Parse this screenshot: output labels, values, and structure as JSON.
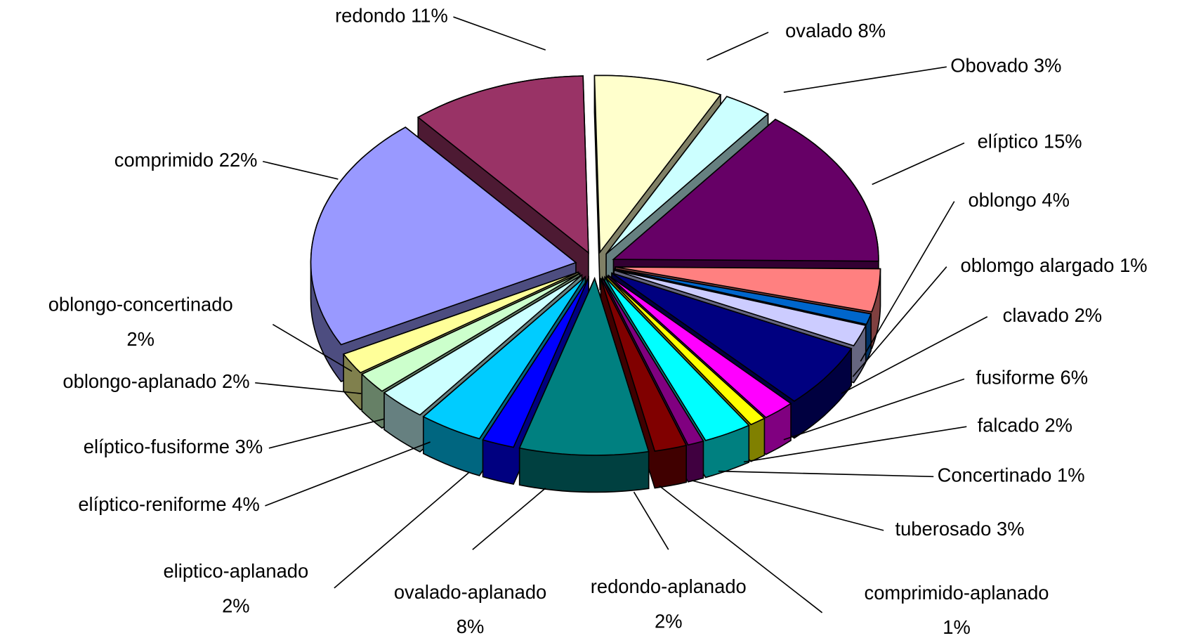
{
  "chart_data": {
    "type": "pie",
    "categories": [
      "redondo",
      "ovalado",
      "Obovado",
      "elíptico",
      "oblongo",
      "oblomgo alargado",
      "clavado",
      "fusiforme",
      "falcado",
      "Concertinado",
      "tuberosado",
      "comprimido-aplanado",
      "redondo-aplanado",
      "ovalado-aplanado",
      "eliptico-aplanado",
      "elíptico-reniforme",
      "elíptico-fusiforme",
      "oblongo-aplanado",
      "oblongo-concertinado",
      "comprimido"
    ],
    "values": [
      11,
      8,
      3,
      15,
      4,
      1,
      2,
      6,
      2,
      1,
      3,
      1,
      2,
      8,
      2,
      4,
      3,
      2,
      2,
      22
    ],
    "value_labels": [
      "11%",
      "8%",
      "3%",
      "15%",
      "4%",
      "1%",
      "2%",
      "6%",
      "2%",
      "1%",
      "3%",
      "1%",
      "2%",
      "8%",
      "2%",
      "4%",
      "3%",
      "2%",
      "2%",
      "22%"
    ],
    "colors": [
      "#993366",
      "#ffffcc",
      "#ccffff",
      "#660066",
      "#ff8080",
      "#0066cc",
      "#ccccff",
      "#000080",
      "#ff00ff",
      "#ffff00",
      "#00ffff",
      "#800080",
      "#800000",
      "#008080",
      "#0000ff",
      "#00ccff",
      "#ccffff",
      "#ccffcc",
      "#ffff99",
      "#9999ff"
    ]
  }
}
